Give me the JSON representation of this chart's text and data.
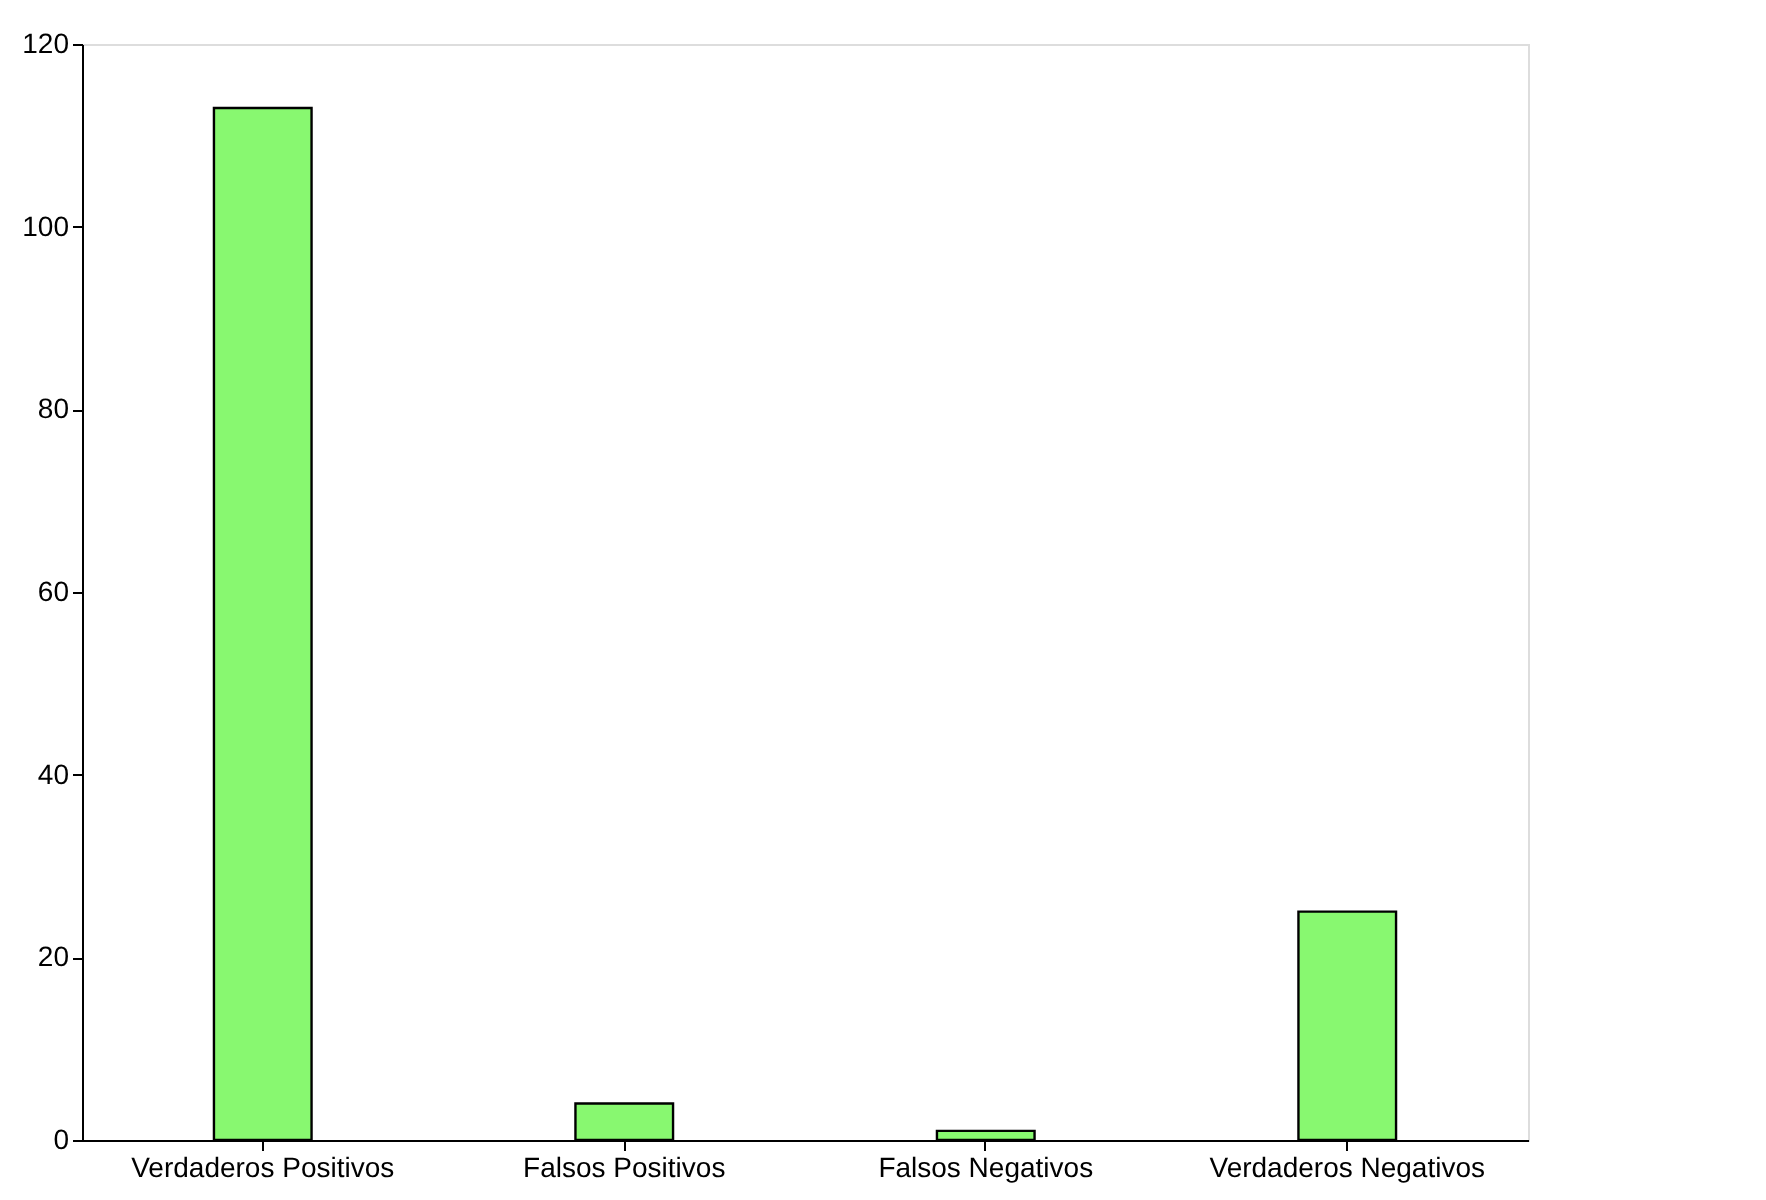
{
  "chart_data": {
    "type": "bar",
    "categories": [
      "Verdaderos Positivos",
      "Falsos Positivos",
      "Falsos Negativos",
      "Verdaderos Negativos"
    ],
    "values": [
      113,
      4,
      1,
      25
    ],
    "color": "#88f870",
    "ylim": [
      0,
      120
    ],
    "yticks": [
      0,
      20,
      40,
      60,
      80,
      100,
      120
    ],
    "grid": false
  }
}
